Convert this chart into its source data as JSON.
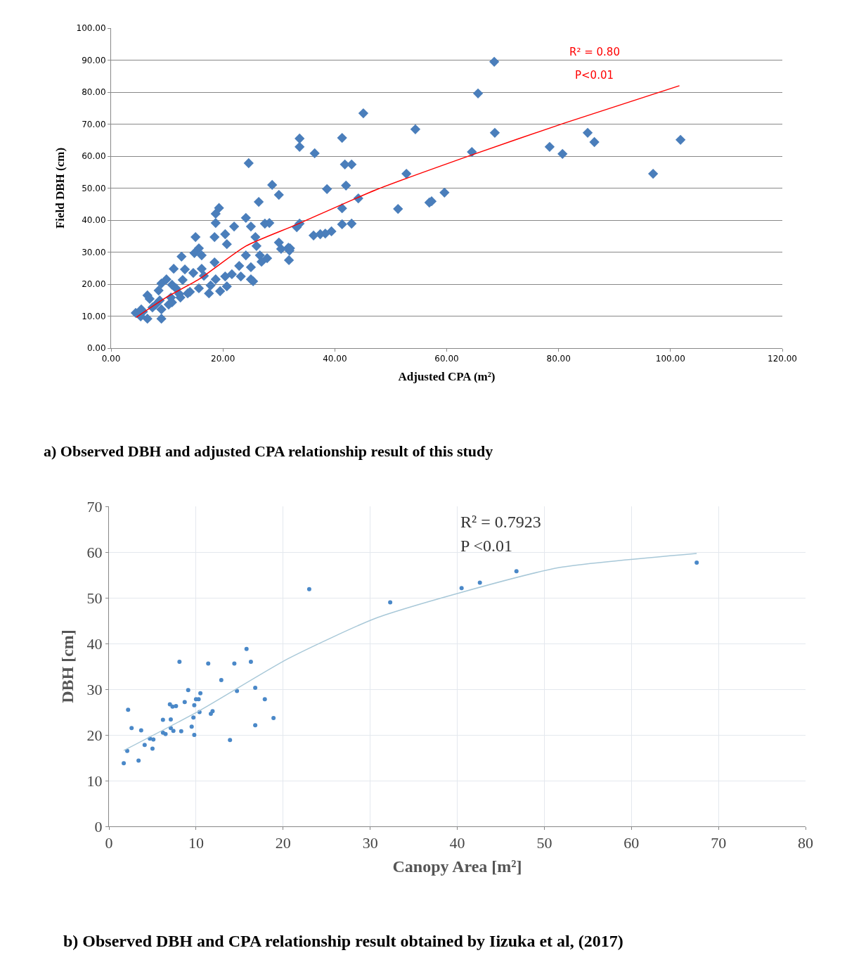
{
  "chart_data": [
    {
      "type": "scatter",
      "xlabel": "Adjusted CPA (m²)",
      "ylabel": "Field DBH (cm)",
      "grid": "y",
      "xlim": [
        0,
        120
      ],
      "xticks": [
        {
          "value": 0,
          "label": "0.00"
        },
        {
          "value": 20,
          "label": "20.00"
        },
        {
          "value": 40,
          "label": "40.00"
        },
        {
          "value": 60,
          "label": "60.00"
        },
        {
          "value": 80,
          "label": "80.00"
        },
        {
          "value": 100,
          "label": "100.00"
        },
        {
          "value": 120,
          "label": "120.00"
        }
      ],
      "ylim": [
        0,
        100
      ],
      "yticks": [
        {
          "value": 0,
          "label": "0.00"
        },
        {
          "value": 10,
          "label": "10.00"
        },
        {
          "value": 20,
          "label": "20.00"
        },
        {
          "value": 30,
          "label": "30.00"
        },
        {
          "value": 40,
          "label": "40.00"
        },
        {
          "value": 50,
          "label": "50.00"
        },
        {
          "value": 60,
          "label": "60.00"
        },
        {
          "value": 70,
          "label": "70.00"
        },
        {
          "value": 80,
          "label": "80.00"
        },
        {
          "value": 90,
          "label": "90.00"
        },
        {
          "value": 100,
          "label": "100.00"
        }
      ],
      "annotations": [
        "R² = 0.80",
        "P<0.01",
        "a) Observed DBH and adjusted CPA relationship result of this study"
      ],
      "series": [
        {
          "color": "#4a7ebb",
          "marker": "diamond",
          "x": [
            68.5,
            65.6,
            45.1,
            54.4,
            68.6,
            85.2,
            86.4,
            101.8,
            78.4,
            80.7,
            64.5,
            96.9,
            52.8,
            59.6,
            57.3,
            56.9,
            51.3,
            44.2,
            41.3,
            43.0,
            41.3,
            38.6,
            41.3,
            41.8,
            43.0,
            42.0,
            36.4,
            33.7,
            33.7,
            28.8,
            30.0,
            24.6,
            26.4,
            36.2,
            37.4,
            38.3,
            39.4,
            33.2,
            33.7,
            31.7,
            31.9,
            30.4,
            30.0,
            19.3,
            18.7,
            18.7,
            22.0,
            24.1,
            25.0,
            27.5,
            28.3,
            18.5,
            20.4,
            20.7,
            15.1,
            15.7,
            14.9,
            16.2,
            12.6,
            25.8,
            26.0,
            32.0,
            31.8,
            24.1,
            26.6,
            27.9,
            18.5,
            16.2,
            11.2,
            13.2,
            18.7,
            20.4,
            21.6,
            20.7,
            23.2,
            25.0,
            25.4,
            17.5,
            15.7,
            14.1,
            6.5,
            9.0,
            9.9,
            11.6,
            12.4,
            10.7,
            7.4,
            9.0,
            10.3,
            4.4,
            6.5,
            9.0,
            5.7,
            5.3,
            13.7,
            8.7,
            8.0,
            5.4,
            6.9,
            8.5,
            10.9,
            12.8,
            14.7,
            16.6,
            17.8,
            19.5,
            22.9,
            25.0,
            26.9,
            10.9,
            12.2
          ],
          "values": [
            89.5,
            79.6,
            73.4,
            68.4,
            67.3,
            67.3,
            64.4,
            65.1,
            62.9,
            60.7,
            61.3,
            54.5,
            54.5,
            48.6,
            45.9,
            45.5,
            43.5,
            46.8,
            43.7,
            38.9,
            38.7,
            49.7,
            65.7,
            57.4,
            57.4,
            50.8,
            60.9,
            65.5,
            62.9,
            51.0,
            47.9,
            57.8,
            45.7,
            35.2,
            35.6,
            35.8,
            36.5,
            37.8,
            38.9,
            31.4,
            30.5,
            31.0,
            33.0,
            43.8,
            42.0,
            39.1,
            38.0,
            40.7,
            38.0,
            38.9,
            39.1,
            34.7,
            35.6,
            32.5,
            34.7,
            31.2,
            29.7,
            29.0,
            28.6,
            34.7,
            31.9,
            31.2,
            27.5,
            29.0,
            29.0,
            28.1,
            26.8,
            24.8,
            24.8,
            24.6,
            21.5,
            22.4,
            23.1,
            19.3,
            22.4,
            21.5,
            20.9,
            17.1,
            18.7,
            17.6,
            16.5,
            20.2,
            21.5,
            18.7,
            15.8,
            15.8,
            12.7,
            12.1,
            13.6,
            11.0,
            9.2,
            9.2,
            11.4,
            9.9,
            17.1,
            14.9,
            13.6,
            12.1,
            15.4,
            18.0,
            19.8,
            21.3,
            23.5,
            22.6,
            19.6,
            17.8,
            25.7,
            25.3,
            27.0,
            14.3,
            16.9
          ]
        },
        {
          "type": "line",
          "marker": "none",
          "color": "#ff0000",
          "x": [
            4.5,
            10,
            15.7,
            24.1,
            33,
            47.4,
            64.2,
            81,
            101.6
          ],
          "values": [
            9.6,
            16,
            21.5,
            31.9,
            38.5,
            49.5,
            60.2,
            70.3,
            82
          ]
        }
      ]
    },
    {
      "type": "scatter",
      "xlabel": "Canopy Area [m²]",
      "ylabel": "DBH [cm]",
      "grid": true,
      "xlim": [
        0,
        80
      ],
      "xticks": [
        0,
        10,
        20,
        30,
        40,
        50,
        60,
        70,
        80
      ],
      "ylim": [
        0,
        70
      ],
      "yticks": [
        0,
        10,
        20,
        30,
        40,
        50,
        60,
        70
      ],
      "annotations": [
        "R² = 0.7923",
        "P <0.01",
        "b) Observed DBH and CPA relationship result obtained by Iizuka et al, (2017)"
      ],
      "series": [
        {
          "color": "#4a88c8",
          "marker": "circle",
          "x": [
            1.7,
            3.4,
            2.1,
            4.1,
            5.0,
            4.7,
            5.1,
            2.6,
            3.7,
            2.2,
            6.2,
            6.5,
            6.2,
            7.1,
            7.1,
            7.4,
            8.3,
            8.1,
            7.0,
            7.3,
            7.7,
            8.7,
            9.1,
            9.5,
            9.8,
            9.7,
            9.8,
            10.0,
            10.3,
            10.5,
            10.4,
            11.4,
            11.7,
            11.9,
            12.9,
            13.9,
            14.4,
            14.7,
            15.8,
            16.3,
            16.8,
            16.8,
            17.9,
            18.9,
            23.0,
            32.3,
            40.5,
            42.6,
            46.8,
            67.5
          ],
          "values": [
            13.8,
            14.4,
            16.5,
            17.8,
            17.0,
            19.2,
            19.0,
            21.5,
            21.0,
            25.5,
            20.5,
            20.2,
            23.3,
            23.4,
            21.5,
            20.9,
            20.8,
            36.0,
            26.7,
            26.2,
            26.3,
            27.2,
            29.8,
            21.8,
            20.0,
            23.8,
            26.5,
            27.8,
            27.8,
            29.1,
            25.0,
            35.6,
            24.6,
            25.2,
            32.0,
            18.9,
            35.6,
            29.6,
            38.8,
            36.0,
            30.3,
            22.1,
            27.8,
            23.7,
            51.9,
            49.0,
            52.1,
            53.3,
            55.8,
            57.7
          ]
        },
        {
          "type": "line",
          "marker": "none",
          "color": "#a8c8d8",
          "x": [
            1.7,
            10.4,
            20.6,
            30.6,
            40.5,
            51.7,
            67.5
          ],
          "values": [
            16.6,
            25.3,
            36.7,
            45.5,
            51.2,
            56.6,
            59.7
          ]
        }
      ]
    }
  ]
}
